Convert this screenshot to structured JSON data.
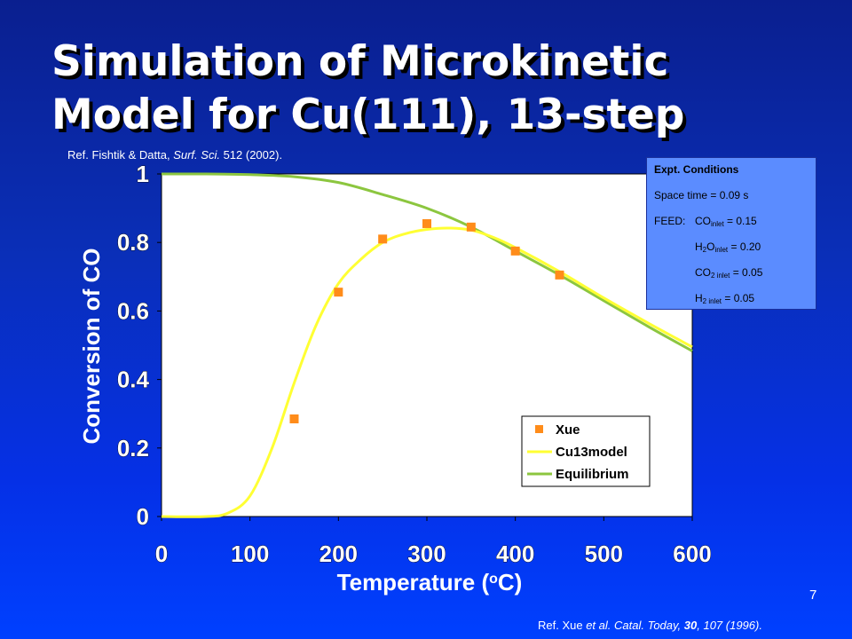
{
  "slide": {
    "title_line1": "Simulation of Microkinetic",
    "title_line2": "Model for Cu(111), 13-step",
    "ref_top_a": "Ref. Fishtik & Datta, ",
    "ref_top_b": "Surf. Sci.",
    "ref_top_c": " 512 (2002).",
    "ref_bottom_a": "Ref. Xue ",
    "ref_bottom_b": "et al. Catal. Today,",
    "ref_bottom_c": " 30",
    "ref_bottom_d": ", 107 (1996).",
    "page_number": "7"
  },
  "conditions": {
    "heading": "Expt. Conditions",
    "space_time": "Space time = 0.09 s",
    "feed_label": "FEED:",
    "co": {
      "main": "CO",
      "sub": "inlet",
      "value": " = 0.15"
    },
    "h2o": {
      "main": "H",
      "sub1": "2",
      "mid": "O",
      "sub": "inlet",
      "value": " = 0.20"
    },
    "co2": {
      "main": "CO",
      "sub": "2 inlet",
      "value": " = 0.05"
    },
    "h2": {
      "main": "H",
      "sub": "2 inlet",
      "value": " = 0.05"
    }
  },
  "chart_data": {
    "type": "line",
    "title": "",
    "xlabel": "Temperature (oC)",
    "xlabel_main": "Temperature (",
    "xlabel_sup": "o",
    "xlabel_end": "C)",
    "ylabel": "Conversion of CO",
    "xlim": [
      0,
      600
    ],
    "ylim": [
      0,
      1
    ],
    "x_ticks": [
      "0",
      "100",
      "200",
      "300",
      "400",
      "500",
      "600"
    ],
    "y_ticks": [
      "0",
      "0.2",
      "0.4",
      "0.6",
      "0.8",
      "1"
    ],
    "grid": false,
    "legend_position": "bottom-right",
    "series": [
      {
        "name": "Xue",
        "kind": "scatter",
        "color": "#ff8c1a",
        "x": [
          150,
          200,
          250,
          300,
          350,
          400,
          450
        ],
        "y": [
          0.285,
          0.655,
          0.81,
          0.855,
          0.845,
          0.775,
          0.705
        ]
      },
      {
        "name": "Cu13model",
        "kind": "line",
        "color": "#ffff33",
        "x": [
          0,
          50,
          75,
          100,
          125,
          150,
          175,
          200,
          225,
          250,
          275,
          300,
          325,
          350,
          375,
          400,
          450,
          500,
          550,
          600
        ],
        "y": [
          0.0,
          0.0,
          0.01,
          0.06,
          0.2,
          0.39,
          0.56,
          0.68,
          0.75,
          0.8,
          0.825,
          0.838,
          0.842,
          0.836,
          0.815,
          0.785,
          0.715,
          0.638,
          0.565,
          0.495
        ]
      },
      {
        "name": "Equilibrium",
        "kind": "line",
        "color": "#8cc63f",
        "x": [
          0,
          50,
          100,
          150,
          200,
          250,
          300,
          350,
          400,
          450,
          500,
          550,
          600
        ],
        "y": [
          1.0,
          1.0,
          0.998,
          0.992,
          0.975,
          0.94,
          0.9,
          0.845,
          0.775,
          0.705,
          0.63,
          0.555,
          0.483
        ]
      }
    ]
  }
}
